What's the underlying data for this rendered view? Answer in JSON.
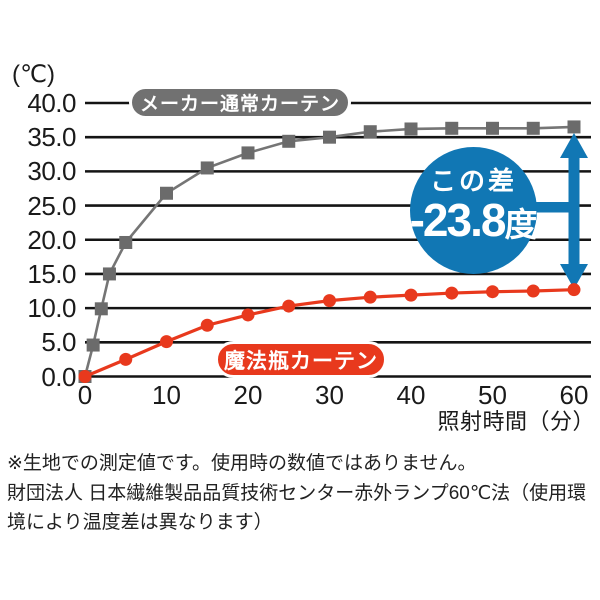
{
  "chart_data": {
    "type": "line",
    "y_axis_unit": "(℃)",
    "xlabel": "照射時間（分）",
    "x_ticks": [
      "0",
      "10",
      "20",
      "30",
      "40",
      "50",
      "60"
    ],
    "y_ticks": [
      "40.0",
      "35.0",
      "30.0",
      "25.0",
      "20.0",
      "15.0",
      "10.0",
      "5.0",
      "0.0"
    ],
    "xlim": [
      0,
      60
    ],
    "ylim": [
      0,
      40
    ],
    "grid": "horizontal",
    "series": [
      {
        "name": "メーカー通常カーテン",
        "color": "#757575",
        "marker": "square",
        "points": [
          [
            0,
            0
          ],
          [
            1,
            4.6
          ],
          [
            2,
            9.9
          ],
          [
            3,
            15.0
          ],
          [
            5,
            19.6
          ],
          [
            10,
            26.8
          ],
          [
            15,
            30.5
          ],
          [
            20,
            32.7
          ],
          [
            25,
            34.4
          ],
          [
            30,
            35.0
          ],
          [
            35,
            35.8
          ],
          [
            40,
            36.2
          ],
          [
            45,
            36.3
          ],
          [
            50,
            36.3
          ],
          [
            55,
            36.3
          ],
          [
            60,
            36.5
          ]
        ]
      },
      {
        "name": "魔法瓶カーテン",
        "color": "#e8391d",
        "marker": "circle",
        "points": [
          [
            0,
            0
          ],
          [
            5,
            2.5
          ],
          [
            10,
            5.1
          ],
          [
            15,
            7.5
          ],
          [
            20,
            9.0
          ],
          [
            25,
            10.3
          ],
          [
            30,
            11.1
          ],
          [
            35,
            11.6
          ],
          [
            40,
            11.9
          ],
          [
            45,
            12.2
          ],
          [
            50,
            12.4
          ],
          [
            55,
            12.5
          ],
          [
            60,
            12.7
          ]
        ]
      }
    ],
    "annotation": {
      "label": "この差",
      "value": "-23.8",
      "unit": "度",
      "color": "#1177b4"
    }
  },
  "footnote": {
    "line1": "※生地での測定値です。使用時の数値ではありません。",
    "line2": "財団法人 日本繊維製品品質技術センター赤外ランプ60℃法（使用環",
    "line3": "境により温度差は異なります）"
  }
}
